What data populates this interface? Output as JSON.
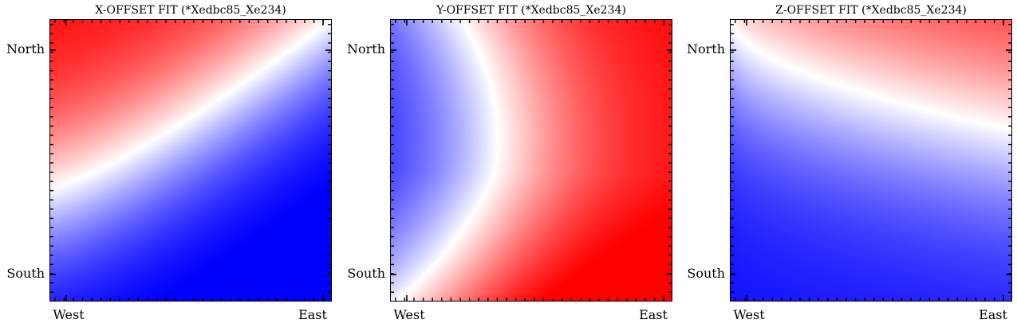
{
  "chart_data": [
    {
      "type": "heatmap",
      "title": "X-OFFSET FIT (*Xedbc85_Xe234)",
      "x_tick_labels": [
        "West",
        "East"
      ],
      "y_tick_labels": [
        "North",
        "South"
      ],
      "colormap": "bwr",
      "colors": {
        "low": "#0000ff",
        "mid": "#ffffff",
        "high": "#ff0000"
      },
      "pattern": "red in north-west corner, blue toward south; zero contour curves from west-center to north-east",
      "grid": false,
      "colorbar": false
    },
    {
      "type": "heatmap",
      "title": "Y-OFFSET FIT (*Xedbc85_Xe234)",
      "x_tick_labels": [
        "West",
        "East"
      ],
      "y_tick_labels": [
        "North",
        "South"
      ],
      "colormap": "bwr",
      "colors": {
        "low": "#0000ff",
        "mid": "#ffffff",
        "high": "#ff0000"
      },
      "pattern": "blue lobe on western edge, red toward east and south-east corner",
      "grid": false,
      "colorbar": false
    },
    {
      "type": "heatmap",
      "title": "Z-OFFSET FIT (*Xedbc85_Xe234)",
      "x_tick_labels": [
        "West",
        "East"
      ],
      "y_tick_labels": [
        "North",
        "South"
      ],
      "colormap": "bwr",
      "colors": {
        "low": "#0000ff",
        "mid": "#ffffff",
        "high": "#ff0000"
      },
      "pattern": "red in north-east corner, blue toward south-east corner",
      "grid": false,
      "colorbar": false
    }
  ]
}
